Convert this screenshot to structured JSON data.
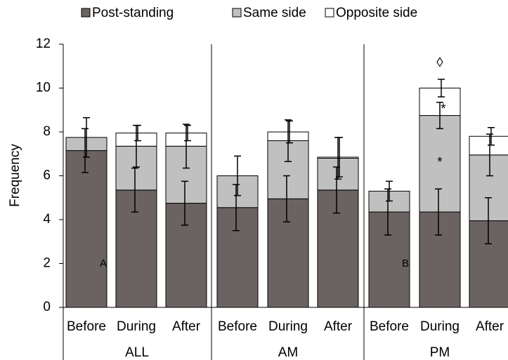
{
  "chart_data": {
    "type": "stacked_bar",
    "y_label": "Frequency",
    "categories": [
      "Before",
      "During",
      "After",
      "Before",
      "During",
      "After",
      "Before",
      "During",
      "After"
    ],
    "groups": [
      "ALL",
      "AM",
      "PM"
    ],
    "series": [
      {
        "name": "Post-standing",
        "color": "#6b6361",
        "values": [
          7.15,
          5.35,
          4.75,
          4.55,
          4.95,
          5.35,
          4.35,
          4.35,
          3.95
        ],
        "errors": [
          1.0,
          1.0,
          1.0,
          1.05,
          1.05,
          1.05,
          1.05,
          1.05,
          1.05
        ]
      },
      {
        "name": "Same side",
        "color": "#c0c0c0",
        "values": [
          0.6,
          2.0,
          2.6,
          1.45,
          2.65,
          1.45,
          0.95,
          4.4,
          3.0
        ],
        "errors": [
          0.9,
          0.95,
          1.0,
          0.9,
          0.95,
          0.95,
          0.45,
          0.6,
          0.95
        ]
      },
      {
        "name": "Opposite side",
        "color": "#ffffff",
        "values": [
          0,
          0.6,
          0.6,
          0,
          0.4,
          0.05,
          0,
          1.25,
          0.85
        ],
        "errors": [
          null,
          0.35,
          0.35,
          null,
          0.5,
          0.9,
          null,
          0.4,
          0.4
        ]
      }
    ],
    "annotations": [
      "A",
      "B",
      "◊",
      "*",
      "*"
    ],
    "ylim": [
      0,
      12
    ],
    "yticks": [
      0,
      2,
      4,
      6,
      8,
      10,
      12
    ]
  }
}
